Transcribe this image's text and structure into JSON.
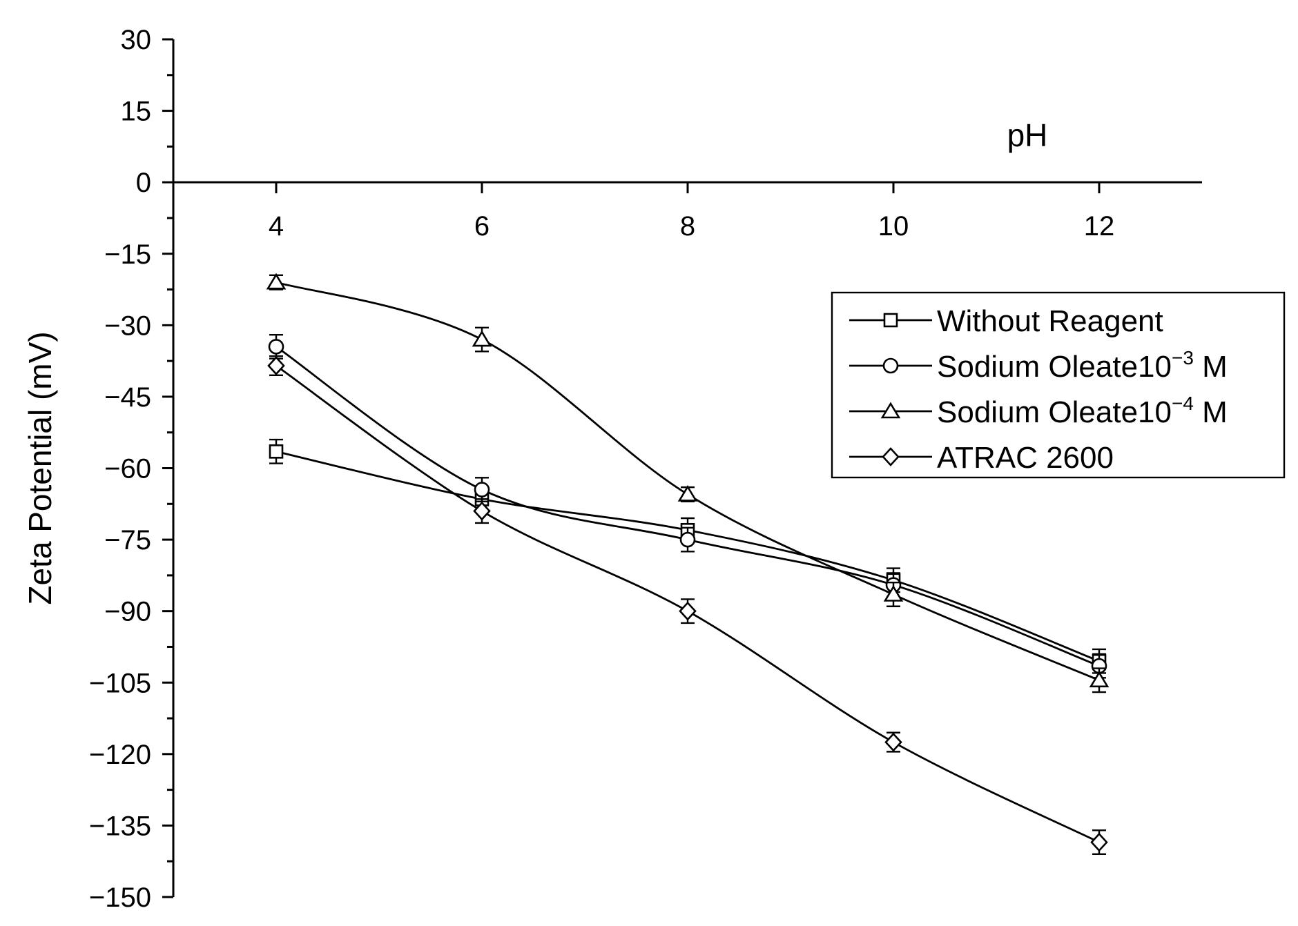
{
  "chart_data": {
    "type": "line",
    "xlabel": "pH",
    "ylabel": "Zeta Potential  (mV)",
    "xlim": [
      3,
      13
    ],
    "ylim": [
      -150,
      30
    ],
    "x_ticks": [
      "4",
      "6",
      "8",
      "10",
      "12"
    ],
    "y_ticks": [
      "30",
      "15",
      "0",
      "−15",
      "−30",
      "−45",
      "−60",
      "−75",
      "−90",
      "−105",
      "−120",
      "−135",
      "−150"
    ],
    "x": [
      4,
      6,
      8,
      10,
      12
    ],
    "legend_position": "right",
    "series": [
      {
        "name": "Without Reagent",
        "legend_main": "Without Reagent",
        "legend_sup": "",
        "legend_tail": "",
        "marker": "square",
        "values": [
          -56.5,
          -66.5,
          -73,
          -83.5,
          -100.5
        ],
        "errors": [
          2.5,
          2.5,
          2.5,
          2.5,
          2.5
        ]
      },
      {
        "name": "Sodium Oleate10⁻³ M",
        "legend_main": "Sodium Oleate10",
        "legend_sup": "−3",
        "legend_tail": " M",
        "marker": "circle",
        "values": [
          -34.5,
          -64.5,
          -75,
          -84.5,
          -101.5
        ],
        "errors": [
          2.5,
          2.5,
          2.5,
          2.5,
          2.5
        ]
      },
      {
        "name": "Sodium Oleate10⁻⁴ M",
        "legend_main": "Sodium Oleate10",
        "legend_sup": "−4",
        "legend_tail": " M",
        "marker": "triangle",
        "values": [
          -21,
          -33,
          -65.5,
          -86.5,
          -104.5
        ],
        "errors": [
          1.5,
          2.5,
          1.5,
          2.5,
          2.5
        ]
      },
      {
        "name": "ATRAC 2600",
        "legend_main": "ATRAC 2600",
        "legend_sup": "",
        "legend_tail": "",
        "marker": "diamond",
        "values": [
          -38.5,
          -69,
          -90,
          -117.5,
          -138.5
        ],
        "errors": [
          2,
          2.5,
          2.5,
          2,
          2.5
        ]
      }
    ]
  }
}
